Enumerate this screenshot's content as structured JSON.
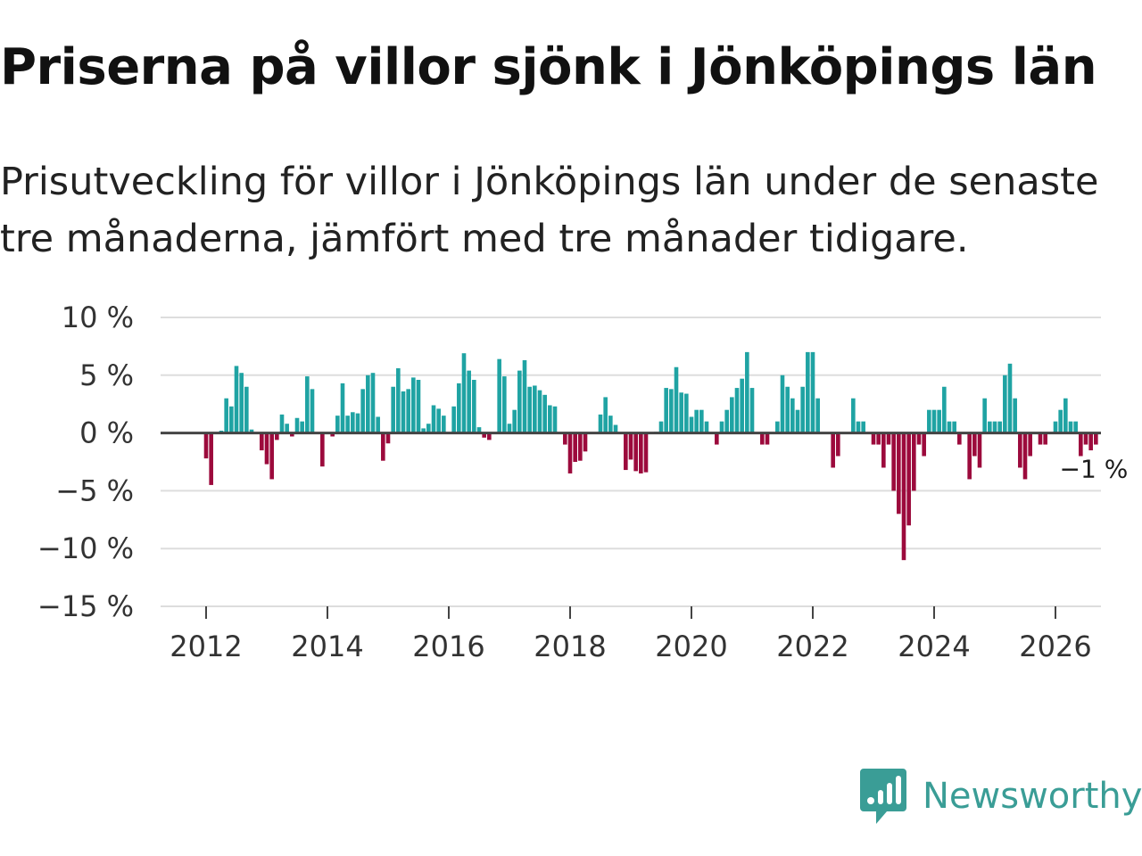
{
  "title": "Priserna på villor sjönk i Jönköpings län",
  "subtitle": "Prisutveckling för villor i Jönköpings län under de senaste tre månaderna, jämfört med tre månader tidigare.",
  "brand": {
    "name": "Newsworthy",
    "icon": "newsworthy-logo-icon",
    "color": "#3a9d96"
  },
  "colors": {
    "positive": "#1fa3a3",
    "negative": "#9c0a3c",
    "grid": "#dddddd",
    "zero": "#444444"
  },
  "chart_data": {
    "type": "bar",
    "title": "Priserna på villor sjönk i Jönköpings län",
    "xlabel": "",
    "ylabel": "",
    "grid": true,
    "legend": "none",
    "ylim": [
      -15,
      10
    ],
    "y_ticks": [
      {
        "value": 10,
        "label": "10 %"
      },
      {
        "value": 5,
        "label": "5 %"
      },
      {
        "value": 0,
        "label": "0 %"
      },
      {
        "value": -5,
        "label": "−5 %"
      },
      {
        "value": -10,
        "label": "−10 %"
      },
      {
        "value": -15,
        "label": "−15 %"
      }
    ],
    "x_ticks": [
      {
        "value": 2012,
        "label": "2012"
      },
      {
        "value": 2014,
        "label": "2014"
      },
      {
        "value": 2016,
        "label": "2016"
      },
      {
        "value": 2018,
        "label": "2018"
      },
      {
        "value": 2020,
        "label": "2020"
      },
      {
        "value": 2022,
        "label": "2022"
      },
      {
        "value": 2024,
        "label": "2024"
      },
      {
        "value": 2026,
        "label": "2026"
      }
    ],
    "start": [
      2012,
      1
    ],
    "frequency": "monthly",
    "unit": "%",
    "last_value_label": "−1 %",
    "values": [
      -2.2,
      -4.5,
      0,
      0.2,
      3.0,
      2.3,
      5.8,
      5.2,
      4.0,
      0.3,
      0,
      -1.5,
      -2.7,
      -4.0,
      -0.6,
      1.6,
      0.8,
      -0.3,
      1.3,
      1.0,
      4.9,
      3.8,
      0,
      -2.9,
      0,
      -0.3,
      1.5,
      4.3,
      1.5,
      1.8,
      1.7,
      3.8,
      5.0,
      5.2,
      1.4,
      -2.4,
      -0.9,
      4.0,
      5.6,
      3.6,
      3.8,
      4.8,
      4.6,
      0.4,
      0.8,
      2.4,
      2.1,
      1.5,
      0,
      2.3,
      4.3,
      6.9,
      5.4,
      4.6,
      0.5,
      -0.4,
      -0.6,
      0,
      6.4,
      4.9,
      0.8,
      2.0,
      5.4,
      6.3,
      4.0,
      4.1,
      3.7,
      3.3,
      2.4,
      2.3,
      0,
      -1.0,
      -3.5,
      -2.5,
      -2.4,
      -1.6,
      0,
      0,
      1.6,
      3.1,
      1.5,
      0.7,
      0,
      -3.2,
      -2.3,
      -3.3,
      -3.5,
      -3.4,
      0,
      0.1,
      1.0,
      3.9,
      3.8,
      5.7,
      3.5,
      3.4,
      1.4,
      2.0,
      2.0,
      1.0,
      0,
      -1.0,
      1.0,
      2.0,
      3.1,
      3.9,
      4.7,
      7.0,
      3.9,
      0,
      -1.0,
      -1.0,
      0,
      1.0,
      5.0,
      4.0,
      3.0,
      2.0,
      4.0,
      7.0,
      7.0,
      3.0,
      0,
      0,
      -3.0,
      -2.0,
      0,
      0,
      3.0,
      1.0,
      1.0,
      0,
      -1.0,
      -1.0,
      -3.0,
      -1.0,
      -5.0,
      -7.0,
      -11.0,
      -8.0,
      -5.0,
      -1.0,
      -2.0,
      2.0,
      2.0,
      2.0,
      4.0,
      1.0,
      1.0,
      -1.0,
      0,
      -4.0,
      -2.0,
      -3.0,
      3.0,
      1.0,
      1.0,
      1.0,
      5.0,
      6.0,
      3.0,
      -3.0,
      -4.0,
      -2.0,
      0,
      -1.0,
      -1.0,
      0,
      1.0,
      2.0,
      3.0,
      1.0,
      1.0,
      -2.0,
      -1.0,
      -1.5,
      -1.0
    ]
  }
}
